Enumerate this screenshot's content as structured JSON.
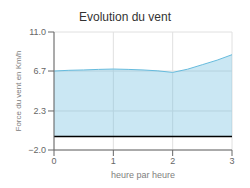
{
  "chart_data": {
    "type": "area",
    "title": "Evolution du vent",
    "x_label": "heure par heure",
    "y_label": "Force du vent en Km/h",
    "x": [
      0,
      0.25,
      0.5,
      0.75,
      1.0,
      1.25,
      1.5,
      1.75,
      2.0,
      2.25,
      2.5,
      2.75,
      3.0
    ],
    "values": [
      6.7,
      6.78,
      6.82,
      6.88,
      6.92,
      6.88,
      6.82,
      6.72,
      6.55,
      6.9,
      7.4,
      7.9,
      8.5
    ],
    "baseline": -0.5,
    "color": "#66bbdd",
    "xlim": [
      0,
      3
    ],
    "ylim": [
      -2.0,
      11.0
    ],
    "xticks": [
      0,
      1,
      2,
      3
    ],
    "yticks": [
      {
        "value": -2.0,
        "label": "−2.0"
      },
      2.3,
      6.7,
      {
        "value": 11.0,
        "label": "11.0"
      }
    ],
    "grid": true
  }
}
